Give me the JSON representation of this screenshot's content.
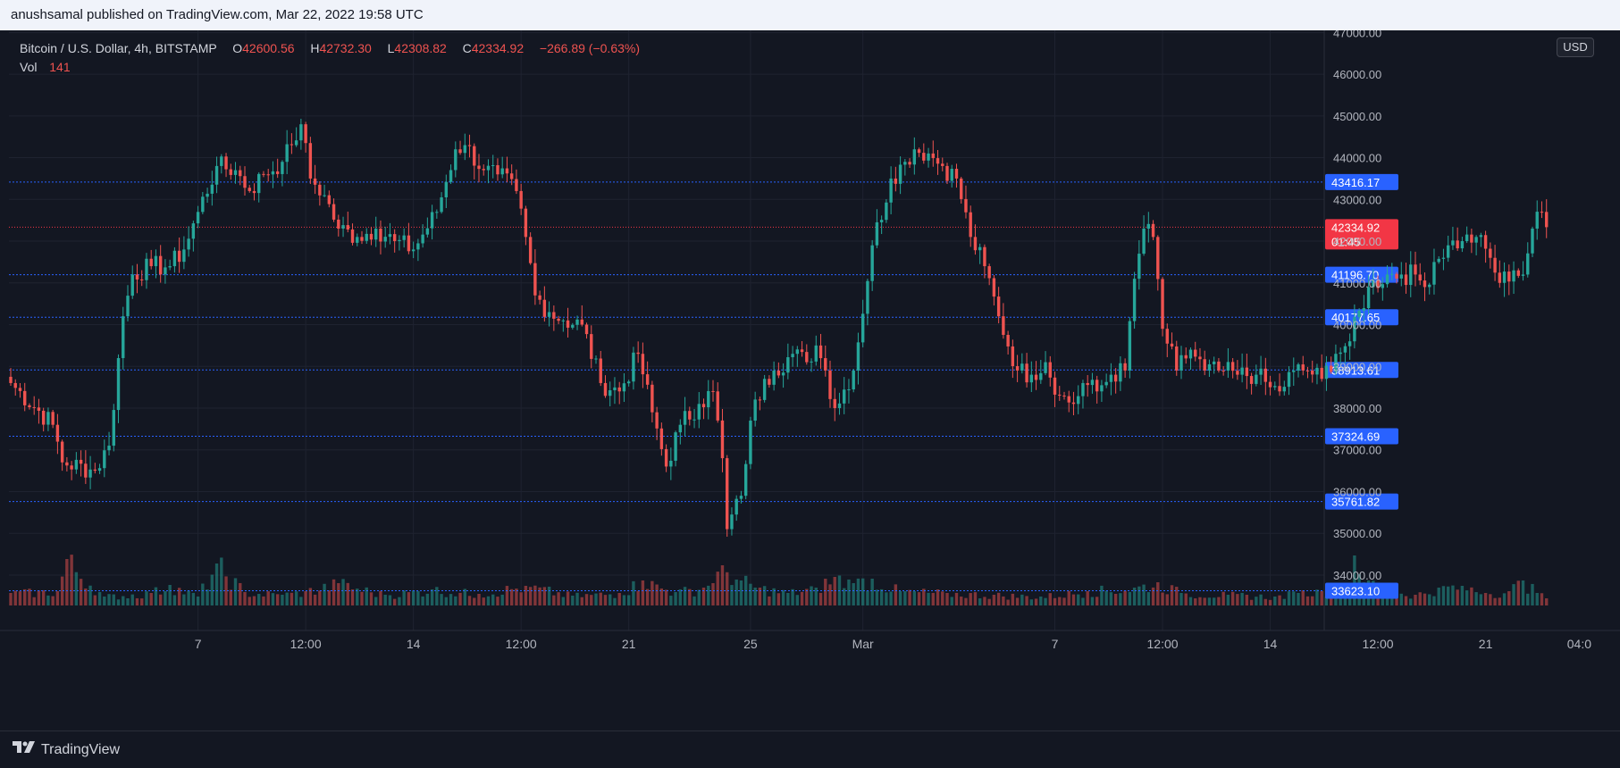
{
  "header": {
    "publisher_line": "anushsamal published on TradingView.com, Mar 22, 2022 19:58 UTC"
  },
  "legend": {
    "symbol": "Bitcoin / U.S. Dollar, 4h, BITSTAMP",
    "o_label": "O",
    "o_value": "42600.56",
    "h_label": "H",
    "h_value": "42732.30",
    "l_label": "L",
    "l_value": "42308.82",
    "c_label": "C",
    "c_value": "42334.92",
    "change": "−266.89 (−0.63%)",
    "vol_label": "Vol",
    "vol_value": "141"
  },
  "currency": "USD",
  "footer": {
    "brand": "TradingView",
    "brand_icon": "tradingview-logo-icon"
  },
  "colors": {
    "background": "#131722",
    "grid": "#1f2330",
    "text": "#b2b5be",
    "up": "#26a69a",
    "down": "#ef5350",
    "level_line": "#2962ff",
    "level_badge": "#2962ff",
    "last_badge": "#f23645"
  },
  "chart_data": {
    "type": "candlestick",
    "symbol": "BTCUSD",
    "interval": "4h",
    "ylim": [
      33250,
      47050
    ],
    "y_ticks": [
      34000,
      35000,
      36000,
      37000,
      38000,
      39000,
      40000,
      41000,
      42000,
      43000,
      44000,
      45000,
      46000,
      47000
    ],
    "y_tick_labels": [
      "34000.00",
      "35000.00",
      "36000.00",
      "37000.00",
      "38000.00",
      "39000.00",
      "40000.00",
      "41000.00",
      "42000.00",
      "43000.00",
      "44000.00",
      "45000.00",
      "46000.00",
      "47000.00"
    ],
    "x_ticks": [
      {
        "label": "7",
        "bar": 40
      },
      {
        "label": "12:00",
        "bar": 63
      },
      {
        "label": "14",
        "bar": 86
      },
      {
        "label": "12:00",
        "bar": 109
      },
      {
        "label": "21",
        "bar": 132
      },
      {
        "label": "25",
        "bar": 158
      },
      {
        "label": "Mar",
        "bar": 182
      },
      {
        "label": "7",
        "bar": 223
      },
      {
        "label": "12:00",
        "bar": 246
      },
      {
        "label": "14",
        "bar": 269
      },
      {
        "label": "12:00",
        "bar": 292
      },
      {
        "label": "21",
        "bar": 315
      },
      {
        "label": "04:0",
        "bar": 335
      }
    ],
    "horizontal_levels": [
      43416.17,
      41196.7,
      40177.65,
      38913.61,
      37324.69,
      35761.82,
      33623.1
    ],
    "horizontal_level_labels": [
      "43416.17",
      "41196.70",
      "40177.65",
      "38913.61",
      "37324.69",
      "35761.82",
      "33623.10"
    ],
    "last_price": 42334.92,
    "last_price_label": "42334.92",
    "countdown": "01:45",
    "anchors": [
      [
        0,
        38600
      ],
      [
        9,
        37600
      ],
      [
        11,
        36700
      ],
      [
        18,
        36500
      ],
      [
        21,
        37100
      ],
      [
        24,
        40200
      ],
      [
        26,
        41200
      ],
      [
        30,
        41400
      ],
      [
        34,
        41400
      ],
      [
        37,
        41800
      ],
      [
        40,
        42700
      ],
      [
        44,
        43800
      ],
      [
        48,
        43700
      ],
      [
        51,
        43200
      ],
      [
        54,
        43600
      ],
      [
        58,
        43900
      ],
      [
        60,
        44300
      ],
      [
        62,
        44800
      ],
      [
        64,
        43500
      ],
      [
        67,
        43100
      ],
      [
        70,
        42300
      ],
      [
        74,
        42100
      ],
      [
        78,
        42300
      ],
      [
        82,
        42000
      ],
      [
        86,
        41800
      ],
      [
        91,
        42700
      ],
      [
        95,
        44200
      ],
      [
        97,
        44300
      ],
      [
        101,
        43700
      ],
      [
        104,
        43600
      ],
      [
        108,
        43200
      ],
      [
        110,
        42100
      ],
      [
        112,
        40700
      ],
      [
        115,
        40300
      ],
      [
        118,
        40100
      ],
      [
        122,
        40000
      ],
      [
        126,
        38600
      ],
      [
        130,
        38400
      ],
      [
        134,
        39300
      ],
      [
        137,
        37900
      ],
      [
        140,
        36600
      ],
      [
        143,
        37600
      ],
      [
        147,
        38100
      ],
      [
        150,
        38400
      ],
      [
        152,
        36800
      ],
      [
        153,
        35100
      ],
      [
        156,
        35900
      ],
      [
        158,
        37700
      ],
      [
        161,
        38700
      ],
      [
        163,
        38900
      ],
      [
        167,
        39300
      ],
      [
        170,
        39100
      ],
      [
        172,
        39500
      ],
      [
        174,
        38900
      ],
      [
        176,
        38000
      ],
      [
        180,
        38900
      ],
      [
        184,
        41900
      ],
      [
        188,
        43500
      ],
      [
        191,
        43900
      ],
      [
        193,
        44200
      ],
      [
        196,
        44100
      ],
      [
        199,
        43800
      ],
      [
        202,
        43500
      ],
      [
        205,
        42100
      ],
      [
        208,
        41400
      ],
      [
        211,
        40200
      ],
      [
        215,
        38900
      ],
      [
        218,
        38800
      ],
      [
        221,
        39100
      ],
      [
        224,
        38300
      ],
      [
        227,
        38100
      ],
      [
        229,
        38600
      ],
      [
        232,
        38400
      ],
      [
        235,
        38800
      ],
      [
        238,
        38900
      ],
      [
        240,
        41100
      ],
      [
        242,
        42300
      ],
      [
        244,
        42100
      ],
      [
        246,
        39900
      ],
      [
        249,
        38900
      ],
      [
        252,
        39400
      ],
      [
        255,
        38900
      ],
      [
        258,
        38900
      ],
      [
        262,
        38800
      ],
      [
        266,
        38800
      ],
      [
        269,
        38500
      ],
      [
        271,
        38400
      ],
      [
        274,
        38900
      ],
      [
        277,
        38900
      ],
      [
        280,
        38700
      ],
      [
        283,
        39300
      ],
      [
        286,
        39600
      ],
      [
        290,
        40900
      ],
      [
        294,
        41200
      ],
      [
        297,
        41200
      ],
      [
        300,
        41200
      ],
      [
        302,
        40900
      ],
      [
        304,
        41500
      ],
      [
        307,
        41900
      ],
      [
        310,
        42000
      ],
      [
        313,
        42100
      ],
      [
        316,
        41600
      ],
      [
        318,
        41000
      ],
      [
        321,
        41300
      ],
      [
        323,
        41200
      ],
      [
        325,
        42300
      ],
      [
        327,
        42700
      ],
      [
        328,
        42334.92
      ]
    ],
    "volume_anchors": [
      [
        0,
        14
      ],
      [
        10,
        16
      ],
      [
        12,
        52
      ],
      [
        20,
        10
      ],
      [
        30,
        14
      ],
      [
        34,
        23
      ],
      [
        40,
        10
      ],
      [
        44,
        47
      ],
      [
        50,
        15
      ],
      [
        58,
        12
      ],
      [
        63,
        16
      ],
      [
        70,
        25
      ],
      [
        80,
        12
      ],
      [
        90,
        18
      ],
      [
        100,
        13
      ],
      [
        110,
        22
      ],
      [
        120,
        11
      ],
      [
        130,
        14
      ],
      [
        135,
        28
      ],
      [
        142,
        15
      ],
      [
        148,
        20
      ],
      [
        150,
        25
      ],
      [
        152,
        45
      ],
      [
        156,
        28
      ],
      [
        160,
        20
      ],
      [
        166,
        14
      ],
      [
        172,
        20
      ],
      [
        176,
        32
      ],
      [
        180,
        25
      ],
      [
        184,
        30
      ],
      [
        190,
        16
      ],
      [
        200,
        14
      ],
      [
        210,
        12
      ],
      [
        220,
        10
      ],
      [
        230,
        16
      ],
      [
        240,
        20
      ],
      [
        245,
        26
      ],
      [
        250,
        14
      ],
      [
        260,
        12
      ],
      [
        270,
        10
      ],
      [
        275,
        14
      ],
      [
        280,
        16
      ],
      [
        285,
        20
      ],
      [
        287,
        56
      ],
      [
        290,
        28
      ],
      [
        295,
        16
      ],
      [
        300,
        12
      ],
      [
        305,
        20
      ],
      [
        310,
        22
      ],
      [
        315,
        14
      ],
      [
        320,
        16
      ],
      [
        323,
        28
      ],
      [
        326,
        14
      ],
      [
        328,
        8
      ]
    ]
  }
}
